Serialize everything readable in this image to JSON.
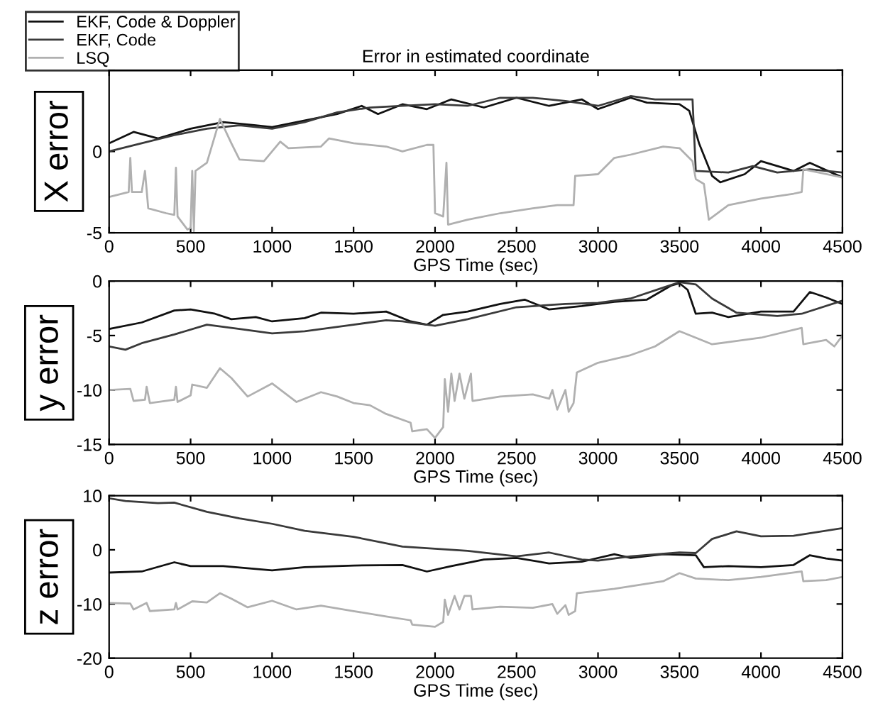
{
  "chart_data": [
    {
      "type": "line",
      "title": "Error in estimated coordinate",
      "xlabel": "GPS Time (sec)",
      "ylabel": "X error",
      "xlim": [
        0,
        4500
      ],
      "xticks": [
        0,
        500,
        1000,
        1500,
        2000,
        2500,
        3000,
        3500,
        4000,
        4500
      ],
      "ylim": [
        -5,
        5
      ],
      "yticks": [
        -5,
        0,
        {
          "value": 5,
          "label": null
        }
      ],
      "grid": false,
      "legend": "top left",
      "line_style": "solid",
      "marker": "none",
      "series": [
        {
          "name": "EKF, Code & Doppler",
          "color": "#111111",
          "x": [
            0,
            150,
            300,
            500,
            700,
            900,
            1000,
            1200,
            1400,
            1550,
            1650,
            1800,
            1950,
            2100,
            2300,
            2500,
            2700,
            2900,
            3000,
            3200,
            3300,
            3500,
            3560,
            3620,
            3700,
            3750,
            3900,
            4000,
            4200,
            4300,
            4500
          ],
          "values": [
            0.5,
            1.2,
            0.8,
            1.4,
            1.8,
            1.6,
            1.5,
            1.9,
            2.3,
            2.8,
            2.3,
            2.9,
            2.6,
            3.2,
            2.7,
            3.3,
            2.8,
            3.2,
            2.6,
            3.3,
            3.0,
            2.9,
            2.5,
            0.5,
            -1.5,
            -1.9,
            -1.4,
            -0.6,
            -1.2,
            -0.7,
            -1.6
          ]
        },
        {
          "name": "EKF, Code",
          "color": "#3a3a3a",
          "x": [
            0,
            200,
            400,
            600,
            800,
            1000,
            1200,
            1400,
            1600,
            1800,
            2000,
            2200,
            2400,
            2600,
            2800,
            3000,
            3200,
            3350,
            3580,
            3600,
            3800,
            3950,
            4100,
            4300,
            4500
          ],
          "values": [
            0.0,
            0.5,
            1.0,
            1.4,
            1.6,
            1.4,
            1.8,
            2.4,
            2.7,
            2.8,
            2.9,
            2.8,
            3.3,
            3.3,
            3.1,
            2.8,
            3.4,
            3.2,
            3.2,
            -1.2,
            -1.3,
            -0.9,
            -1.3,
            -1.1,
            -1.3
          ]
        },
        {
          "name": "LSQ",
          "color": "#b0b0b0",
          "x": [
            0,
            120,
            130,
            140,
            200,
            220,
            240,
            350,
            400,
            410,
            420,
            480,
            500,
            510,
            520,
            530,
            600,
            680,
            750,
            800,
            950,
            1050,
            1100,
            1300,
            1350,
            1500,
            1700,
            1800,
            1950,
            1990,
            2000,
            2050,
            2070,
            2080,
            2200,
            2400,
            2600,
            2750,
            2850,
            2860,
            3000,
            3050,
            3100,
            3200,
            3400,
            3500,
            3580,
            3600,
            3650,
            3680,
            3800,
            4000,
            4200,
            4250,
            4260,
            4500
          ],
          "values": [
            -2.8,
            -2.5,
            -0.4,
            -2.5,
            -2.5,
            -1.2,
            -3.5,
            -3.8,
            -3.9,
            -1.0,
            -4.0,
            -4.8,
            -4.7,
            -1.2,
            -4.9,
            -1.2,
            -0.7,
            2.0,
            0.5,
            -0.5,
            -0.6,
            0.6,
            0.2,
            0.3,
            0.8,
            0.5,
            0.3,
            0.0,
            0.4,
            0.4,
            -3.8,
            -4.0,
            -0.7,
            -4.5,
            -4.2,
            -3.8,
            -3.5,
            -3.3,
            -3.3,
            -1.5,
            -1.4,
            -0.9,
            -0.4,
            -0.2,
            0.3,
            0.2,
            -0.6,
            -1.7,
            -2.0,
            -4.2,
            -3.3,
            -2.9,
            -2.6,
            -2.5,
            -1.1,
            -1.6
          ]
        }
      ]
    },
    {
      "type": "line",
      "xlabel": "GPS Time (sec)",
      "ylabel": "y error",
      "xlim": [
        0,
        4500
      ],
      "xticks": [
        0,
        500,
        1000,
        1500,
        2000,
        2500,
        3000,
        3500,
        4000,
        4500
      ],
      "ylim": [
        -15,
        0
      ],
      "yticks": [
        -15,
        -10,
        -5,
        0
      ],
      "grid": false,
      "line_style": "solid",
      "marker": "none",
      "series": [
        {
          "color": "#111111",
          "x": [
            0,
            200,
            400,
            500,
            650,
            750,
            900,
            1000,
            1200,
            1300,
            1500,
            1700,
            1850,
            1950,
            2050,
            2200,
            2400,
            2550,
            2700,
            2900,
            3100,
            3300,
            3450,
            3500,
            3550,
            3600,
            3700,
            3800,
            4000,
            4200,
            4300,
            4400,
            4500
          ],
          "values": [
            -4.4,
            -3.8,
            -2.7,
            -2.6,
            -3.0,
            -3.5,
            -3.3,
            -3.7,
            -3.4,
            -2.9,
            -3.0,
            -2.8,
            -3.7,
            -4.0,
            -3.1,
            -2.8,
            -2.1,
            -1.7,
            -2.6,
            -2.3,
            -1.9,
            -1.7,
            -0.4,
            -0.2,
            -0.8,
            -3.0,
            -2.9,
            -3.3,
            -2.8,
            -2.8,
            -1.0,
            -1.5,
            -2.1
          ]
        },
        {
          "color": "#3a3a3a",
          "x": [
            0,
            100,
            200,
            400,
            600,
            800,
            1000,
            1200,
            1500,
            1700,
            1800,
            1900,
            2000,
            2200,
            2500,
            2800,
            3000,
            3200,
            3400,
            3500,
            3600,
            3700,
            3850,
            4100,
            4250,
            4500
          ],
          "values": [
            -6.0,
            -6.3,
            -5.7,
            -4.9,
            -4.0,
            -4.4,
            -4.8,
            -4.6,
            -4.0,
            -3.6,
            -3.7,
            -3.9,
            -4.1,
            -3.5,
            -2.4,
            -2.1,
            -2.0,
            -1.6,
            -0.6,
            -0.1,
            -0.3,
            -1.6,
            -2.9,
            -3.2,
            -3.0,
            -1.8
          ]
        },
        {
          "color": "#b0b0b0",
          "x": [
            0,
            130,
            150,
            220,
            230,
            250,
            400,
            410,
            420,
            500,
            510,
            600,
            680,
            750,
            850,
            1000,
            1150,
            1300,
            1400,
            1500,
            1600,
            1700,
            1850,
            1860,
            1950,
            2000,
            2050,
            2060,
            2080,
            2100,
            2120,
            2150,
            2180,
            2220,
            2230,
            2400,
            2600,
            2700,
            2720,
            2750,
            2800,
            2820,
            2850,
            2870,
            3000,
            3200,
            3350,
            3500,
            3600,
            3700,
            3800,
            4000,
            4250,
            4260,
            4400,
            4450,
            4500
          ],
          "values": [
            -10.0,
            -9.9,
            -11.0,
            -10.9,
            -9.7,
            -11.2,
            -10.9,
            -9.7,
            -11.1,
            -10.5,
            -9.5,
            -9.8,
            -8.0,
            -8.9,
            -10.6,
            -9.4,
            -11.1,
            -10.2,
            -10.6,
            -11.2,
            -11.4,
            -12.2,
            -13.0,
            -13.8,
            -13.6,
            -14.4,
            -13.4,
            -9.0,
            -12.0,
            -8.5,
            -11.0,
            -8.5,
            -10.8,
            -8.5,
            -11.0,
            -10.6,
            -10.4,
            -10.8,
            -10.0,
            -11.8,
            -10.0,
            -12.0,
            -11.2,
            -8.4,
            -7.5,
            -6.8,
            -6.0,
            -4.6,
            -5.2,
            -5.8,
            -5.6,
            -5.2,
            -4.3,
            -5.8,
            -5.4,
            -6.0,
            -5.0
          ]
        }
      ]
    },
    {
      "type": "line",
      "xlabel": "GPS Time (sec)",
      "ylabel": "z error",
      "xlim": [
        0,
        4500
      ],
      "xticks": [
        0,
        500,
        1000,
        1500,
        2000,
        2500,
        3000,
        3500,
        4000,
        4500
      ],
      "ylim": [
        -20,
        10
      ],
      "yticks": [
        -20,
        -10,
        0,
        10
      ],
      "grid": false,
      "line_style": "solid",
      "marker": "none",
      "series": [
        {
          "color": "#111111",
          "x": [
            0,
            200,
            400,
            500,
            700,
            1000,
            1200,
            1500,
            1800,
            1950,
            2100,
            2300,
            2500,
            2700,
            2900,
            3100,
            3200,
            3400,
            3600,
            3650,
            3800,
            4000,
            4200,
            4300,
            4400,
            4500
          ],
          "values": [
            -4.2,
            -4.0,
            -2.3,
            -3.0,
            -3.0,
            -3.8,
            -3.2,
            -2.9,
            -2.8,
            -4.0,
            -3.0,
            -1.8,
            -1.5,
            -2.5,
            -2.2,
            -0.8,
            -1.5,
            -0.8,
            -1.0,
            -3.2,
            -3.0,
            -3.2,
            -2.8,
            -1.0,
            -1.6,
            -2.0
          ]
        },
        {
          "color": "#3a3a3a",
          "x": [
            0,
            100,
            300,
            400,
            600,
            800,
            1000,
            1200,
            1500,
            1800,
            2000,
            2200,
            2500,
            2700,
            2900,
            3000,
            3200,
            3500,
            3600,
            3700,
            3850,
            4000,
            4200,
            4500
          ],
          "values": [
            9.5,
            9.0,
            8.6,
            8.7,
            7.0,
            5.8,
            4.8,
            3.5,
            2.4,
            0.6,
            0.2,
            -0.2,
            -1.2,
            -0.5,
            -1.8,
            -2.0,
            -1.2,
            -0.5,
            -0.6,
            2.0,
            3.4,
            2.5,
            2.6,
            4.0
          ]
        },
        {
          "color": "#b0b0b0",
          "x": [
            0,
            130,
            150,
            230,
            250,
            400,
            410,
            420,
            510,
            600,
            680,
            750,
            850,
            1000,
            1150,
            1300,
            1500,
            1700,
            1850,
            1860,
            2000,
            2050,
            2060,
            2080,
            2120,
            2150,
            2180,
            2220,
            2230,
            2400,
            2600,
            2720,
            2750,
            2800,
            2820,
            2860,
            2870,
            3100,
            3400,
            3500,
            3600,
            3800,
            4000,
            4250,
            4260,
            4400,
            4500
          ],
          "values": [
            -9.8,
            -9.9,
            -11.0,
            -9.8,
            -11.3,
            -11.0,
            -9.8,
            -11.0,
            -9.5,
            -9.7,
            -8.0,
            -9.0,
            -10.6,
            -9.4,
            -11.0,
            -10.3,
            -11.3,
            -12.3,
            -13.0,
            -13.8,
            -14.2,
            -13.3,
            -9.2,
            -12.0,
            -8.5,
            -11.0,
            -8.5,
            -8.5,
            -11.0,
            -10.5,
            -10.7,
            -10.0,
            -11.8,
            -10.2,
            -12.0,
            -11.3,
            -8.0,
            -7.2,
            -5.8,
            -4.3,
            -5.3,
            -5.6,
            -5.0,
            -4.0,
            -5.8,
            -5.6,
            -5.0
          ]
        }
      ]
    }
  ]
}
